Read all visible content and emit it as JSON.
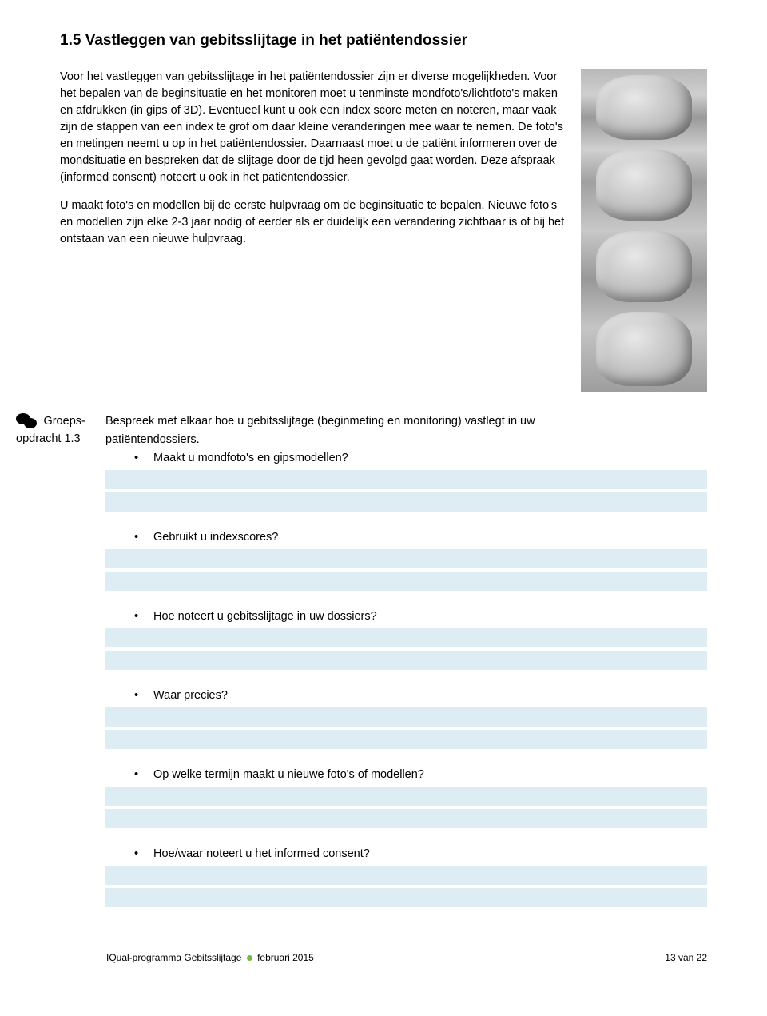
{
  "heading": "1.5 Vastleggen van gebitsslijtage in het patiëntendossier",
  "paragraphs": {
    "p1": "Voor het vastleggen van gebitsslijtage in het patiëntendossier zijn er diverse mogelijkheden. Voor het bepalen van de beginsituatie en het monitoren moet u tenminste mondfoto's/lichtfoto's maken en afdrukken (in gips of 3D). Eventueel kunt u ook een index score meten en noteren, maar vaak zijn de stappen van een index te grof om daar kleine veranderingen mee waar te nemen. De foto's en metingen neemt u op in het patiëntendossier. Daarnaast moet u de patiënt informeren over de mondsituatie en bespreken dat de slijtage door de tijd heen gevolgd gaat worden. Deze afspraak (informed consent) noteert u ook in het patiëntendossier.",
    "p2": "U maakt foto's en modellen bij de eerste hulpvraag om de beginsituatie te bepalen. Nieuwe foto's en modellen zijn elke 2-3 jaar nodig of eerder als er duidelijk een verandering zichtbaar is of bij het ontstaan van een nieuwe hulpvraag."
  },
  "assignment": {
    "label_line1": "Groeps-",
    "label_line2": "opdracht 1.3",
    "intro1": "Bespreek met elkaar hoe u gebitsslijtage (beginmeting en monitoring) vastlegt in uw",
    "intro2": "patiëntendossiers.",
    "questions": [
      "Maakt u mondfoto's en gipsmodellen?",
      "Gebruikt u indexscores?",
      "Hoe noteert u gebitsslijtage in uw dossiers?",
      "Waar precies?",
      "Op welke termijn maakt u nieuwe foto's of modellen?",
      "Hoe/waar noteert u het informed consent?"
    ]
  },
  "footer": {
    "left_a": "IQual-programma Gebitsslijtage",
    "left_b": "februari 2015",
    "right": "13 van 22"
  },
  "colors": {
    "answer_bar": "#deecf4",
    "dot": "#7ab642"
  }
}
